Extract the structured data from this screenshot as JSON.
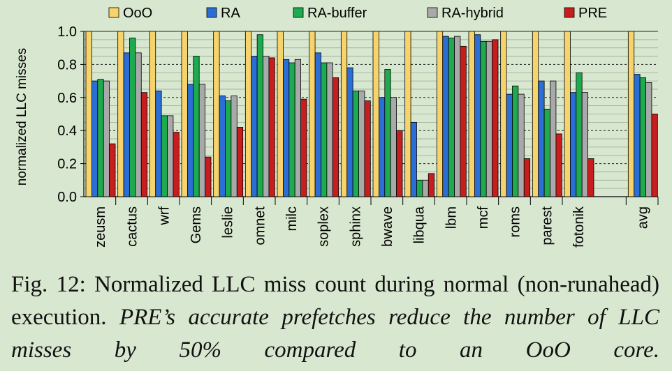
{
  "chart_data": {
    "type": "bar",
    "ylabel": "normalized LLC misses",
    "xlabel": "",
    "ylim": [
      0,
      1.0
    ],
    "yticks": [
      "0.0",
      "0.2",
      "0.4",
      "0.6",
      "0.8",
      "1.0"
    ],
    "grid": true,
    "legend_position": "top",
    "categories": [
      "zeusm",
      "cactus",
      "wrf",
      "Gems",
      "leslie",
      "omnet",
      "milc",
      "soplex",
      "sphinx",
      "bwave",
      "libqua",
      "lbm",
      "mcf",
      "roms",
      "parest",
      "fotonik",
      "avg"
    ],
    "series": [
      {
        "name": "OoO",
        "color": "#f7d36b",
        "values": [
          1.0,
          1.0,
          1.0,
          1.0,
          1.0,
          1.0,
          1.0,
          1.0,
          1.0,
          1.0,
          1.0,
          1.0,
          1.0,
          1.0,
          1.0,
          1.0,
          1.0
        ]
      },
      {
        "name": "RA",
        "color": "#2a6ed6",
        "values": [
          0.7,
          0.87,
          0.64,
          0.68,
          0.61,
          0.85,
          0.83,
          0.87,
          0.78,
          0.6,
          0.45,
          0.97,
          0.98,
          0.62,
          0.7,
          0.63,
          0.74
        ]
      },
      {
        "name": "RA-buffer",
        "color": "#1eaa4e",
        "values": [
          0.71,
          0.96,
          0.49,
          0.85,
          0.58,
          0.98,
          0.81,
          0.81,
          0.64,
          0.77,
          0.1,
          0.96,
          0.94,
          0.67,
          0.53,
          0.75,
          0.72
        ]
      },
      {
        "name": "RA-hybrid",
        "color": "#a9a9a9",
        "values": [
          0.7,
          0.87,
          0.49,
          0.68,
          0.61,
          0.85,
          0.83,
          0.81,
          0.64,
          0.6,
          0.1,
          0.97,
          0.94,
          0.62,
          0.7,
          0.63,
          0.69
        ]
      },
      {
        "name": "PRE",
        "color": "#c81d1d",
        "values": [
          0.32,
          0.63,
          0.39,
          0.24,
          0.42,
          0.84,
          0.59,
          0.72,
          0.58,
          0.4,
          0.14,
          0.91,
          0.95,
          0.23,
          0.38,
          0.23,
          0.5
        ]
      }
    ]
  },
  "caption": {
    "fig_label": "Fig. 12:",
    "text": "Normalized LLC miss count during normal (non-runahead) execution.",
    "emphasis": "PRE’s accurate prefetches reduce the number of LLC misses by 50% compared to an OoO core."
  }
}
